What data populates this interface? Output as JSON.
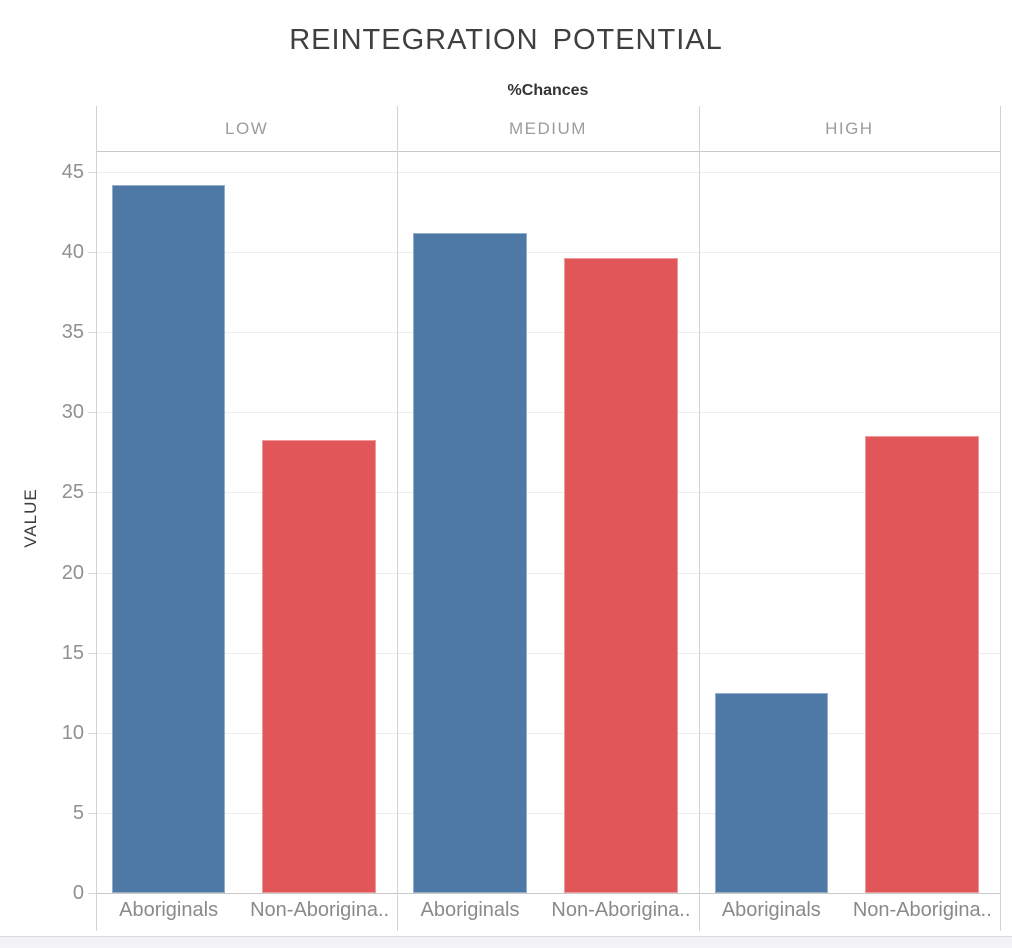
{
  "chart_data": {
    "type": "bar",
    "title": "REINTEGRATION POTENTIAL",
    "column_field_label": "%Chances",
    "ylabel": "VALUE",
    "ylim": [
      0,
      46.3
    ],
    "yticks": [
      0,
      5,
      10,
      15,
      20,
      25,
      30,
      35,
      40,
      45
    ],
    "grid": "horizontal",
    "legend": "none",
    "panels": [
      "LOW",
      "MEDIUM",
      "HIGH"
    ],
    "categories": [
      "Aboriginals",
      "Non-Aborigina.."
    ],
    "series": [
      {
        "name": "Aboriginals",
        "color": "#4e79a7",
        "values": [
          44.2,
          41.2,
          12.5
        ]
      },
      {
        "name": "Non-Aborigina..",
        "color": "#e15759",
        "values": [
          28.3,
          39.6,
          28.5
        ]
      }
    ]
  }
}
